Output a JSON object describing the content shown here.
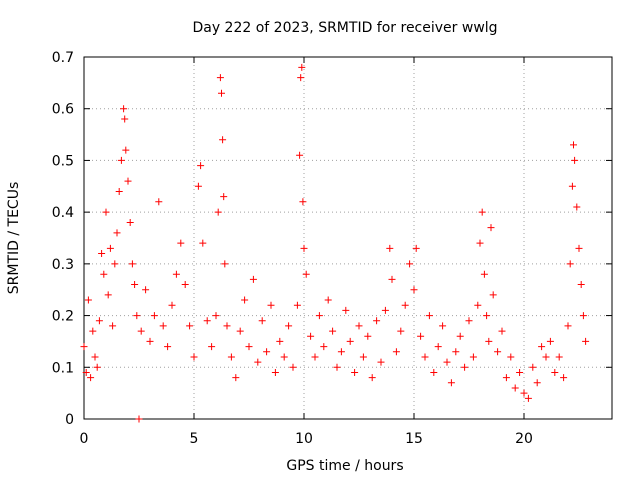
{
  "chart_data": {
    "type": "scatter",
    "title": "Day 222 of 2023, SRMTID for receiver wwlg",
    "xlabel": "GPS time / hours",
    "ylabel": "SRMTID / TECUs",
    "xlim": [
      0,
      24
    ],
    "ylim": [
      0,
      0.7
    ],
    "x_ticks": [
      0,
      5,
      10,
      15,
      20
    ],
    "x_tick_labels": [
      "0",
      "5",
      "10",
      "15",
      "20"
    ],
    "y_ticks": [
      0,
      0.1,
      0.2,
      0.3,
      0.4,
      0.5,
      0.6,
      0.7
    ],
    "y_tick_labels": [
      "0",
      "0.1",
      "0.2",
      "0.3",
      "0.4",
      "0.5",
      "0.6",
      "0.7"
    ],
    "grid": true,
    "marker": "+",
    "color": "#ff0000",
    "series": [
      {
        "name": "SRMTID",
        "points": [
          [
            0.0,
            0.14
          ],
          [
            0.1,
            0.09
          ],
          [
            0.2,
            0.23
          ],
          [
            0.3,
            0.08
          ],
          [
            0.4,
            0.17
          ],
          [
            0.5,
            0.12
          ],
          [
            0.6,
            0.1
          ],
          [
            0.7,
            0.19
          ],
          [
            0.8,
            0.32
          ],
          [
            0.9,
            0.28
          ],
          [
            1.0,
            0.4
          ],
          [
            1.1,
            0.24
          ],
          [
            1.2,
            0.33
          ],
          [
            1.3,
            0.18
          ],
          [
            1.4,
            0.3
          ],
          [
            1.5,
            0.36
          ],
          [
            1.6,
            0.44
          ],
          [
            1.7,
            0.5
          ],
          [
            1.8,
            0.6
          ],
          [
            1.85,
            0.58
          ],
          [
            1.9,
            0.52
          ],
          [
            2.0,
            0.46
          ],
          [
            2.1,
            0.38
          ],
          [
            2.2,
            0.3
          ],
          [
            2.3,
            0.26
          ],
          [
            2.4,
            0.2
          ],
          [
            2.5,
            0.0
          ],
          [
            2.6,
            0.17
          ],
          [
            2.8,
            0.25
          ],
          [
            3.0,
            0.15
          ],
          [
            3.2,
            0.2
          ],
          [
            3.4,
            0.42
          ],
          [
            3.6,
            0.18
          ],
          [
            3.8,
            0.14
          ],
          [
            4.0,
            0.22
          ],
          [
            4.2,
            0.28
          ],
          [
            4.4,
            0.34
          ],
          [
            4.6,
            0.26
          ],
          [
            4.8,
            0.18
          ],
          [
            5.0,
            0.12
          ],
          [
            5.2,
            0.45
          ],
          [
            5.3,
            0.49
          ],
          [
            5.4,
            0.34
          ],
          [
            5.6,
            0.19
          ],
          [
            5.8,
            0.14
          ],
          [
            6.0,
            0.2
          ],
          [
            6.1,
            0.4
          ],
          [
            6.2,
            0.66
          ],
          [
            6.25,
            0.63
          ],
          [
            6.3,
            0.54
          ],
          [
            6.35,
            0.43
          ],
          [
            6.4,
            0.3
          ],
          [
            6.5,
            0.18
          ],
          [
            6.7,
            0.12
          ],
          [
            6.9,
            0.08
          ],
          [
            7.1,
            0.17
          ],
          [
            7.3,
            0.23
          ],
          [
            7.5,
            0.14
          ],
          [
            7.7,
            0.27
          ],
          [
            7.9,
            0.11
          ],
          [
            8.1,
            0.19
          ],
          [
            8.3,
            0.13
          ],
          [
            8.5,
            0.22
          ],
          [
            8.7,
            0.09
          ],
          [
            8.9,
            0.15
          ],
          [
            9.1,
            0.12
          ],
          [
            9.3,
            0.18
          ],
          [
            9.5,
            0.1
          ],
          [
            9.7,
            0.22
          ],
          [
            9.8,
            0.51
          ],
          [
            9.85,
            0.66
          ],
          [
            9.9,
            0.68
          ],
          [
            9.95,
            0.42
          ],
          [
            10.0,
            0.33
          ],
          [
            10.1,
            0.28
          ],
          [
            10.3,
            0.16
          ],
          [
            10.5,
            0.12
          ],
          [
            10.7,
            0.2
          ],
          [
            10.9,
            0.14
          ],
          [
            11.1,
            0.23
          ],
          [
            11.3,
            0.17
          ],
          [
            11.5,
            0.1
          ],
          [
            11.7,
            0.13
          ],
          [
            11.9,
            0.21
          ],
          [
            12.1,
            0.15
          ],
          [
            12.3,
            0.09
          ],
          [
            12.5,
            0.18
          ],
          [
            12.7,
            0.12
          ],
          [
            12.9,
            0.16
          ],
          [
            13.1,
            0.08
          ],
          [
            13.3,
            0.19
          ],
          [
            13.5,
            0.11
          ],
          [
            13.7,
            0.21
          ],
          [
            13.9,
            0.33
          ],
          [
            14.0,
            0.27
          ],
          [
            14.2,
            0.13
          ],
          [
            14.4,
            0.17
          ],
          [
            14.6,
            0.22
          ],
          [
            14.8,
            0.3
          ],
          [
            15.0,
            0.25
          ],
          [
            15.1,
            0.33
          ],
          [
            15.3,
            0.16
          ],
          [
            15.5,
            0.12
          ],
          [
            15.7,
            0.2
          ],
          [
            15.9,
            0.09
          ],
          [
            16.1,
            0.14
          ],
          [
            16.3,
            0.18
          ],
          [
            16.5,
            0.11
          ],
          [
            16.7,
            0.07
          ],
          [
            16.9,
            0.13
          ],
          [
            17.1,
            0.16
          ],
          [
            17.3,
            0.1
          ],
          [
            17.5,
            0.19
          ],
          [
            17.7,
            0.12
          ],
          [
            17.9,
            0.22
          ],
          [
            18.0,
            0.34
          ],
          [
            18.1,
            0.4
          ],
          [
            18.2,
            0.28
          ],
          [
            18.3,
            0.2
          ],
          [
            18.4,
            0.15
          ],
          [
            18.5,
            0.37
          ],
          [
            18.6,
            0.24
          ],
          [
            18.8,
            0.13
          ],
          [
            19.0,
            0.17
          ],
          [
            19.2,
            0.08
          ],
          [
            19.4,
            0.12
          ],
          [
            19.6,
            0.06
          ],
          [
            19.8,
            0.09
          ],
          [
            20.0,
            0.05
          ],
          [
            20.2,
            0.04
          ],
          [
            20.4,
            0.1
          ],
          [
            20.6,
            0.07
          ],
          [
            20.8,
            0.14
          ],
          [
            21.0,
            0.12
          ],
          [
            21.2,
            0.15
          ],
          [
            21.4,
            0.09
          ],
          [
            21.6,
            0.12
          ],
          [
            21.8,
            0.08
          ],
          [
            22.0,
            0.18
          ],
          [
            22.1,
            0.3
          ],
          [
            22.2,
            0.45
          ],
          [
            22.25,
            0.53
          ],
          [
            22.3,
            0.5
          ],
          [
            22.4,
            0.41
          ],
          [
            22.5,
            0.33
          ],
          [
            22.6,
            0.26
          ],
          [
            22.7,
            0.2
          ],
          [
            22.8,
            0.15
          ]
        ]
      }
    ]
  }
}
